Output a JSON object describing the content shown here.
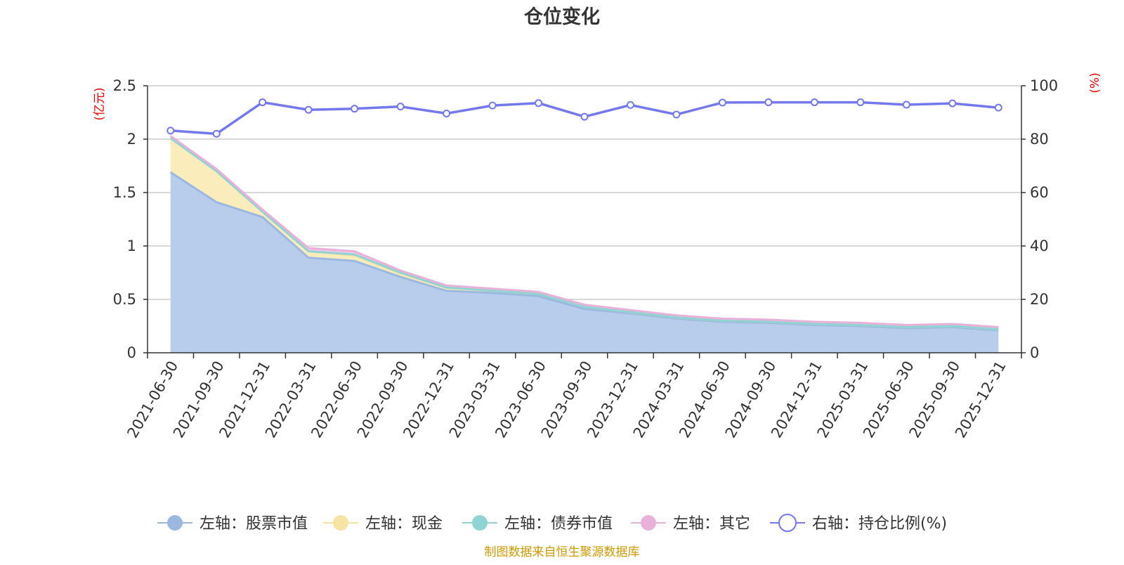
{
  "chart_data": {
    "type": "area",
    "title": "仓位变化",
    "left_axis": {
      "unit_label": "(亿元)",
      "ylim": [
        0,
        2.5
      ],
      "ticks": [
        "0",
        "0.5",
        "1",
        "1.5",
        "2",
        "2.5"
      ]
    },
    "right_axis": {
      "unit_label": "(%)",
      "ylim": [
        0,
        100
      ],
      "ticks": [
        "0",
        "20",
        "40",
        "60",
        "80",
        "100"
      ]
    },
    "categories": [
      "2021-06-30",
      "2021-09-30",
      "2021-12-31",
      "2022-03-31",
      "2022-06-30",
      "2022-09-30",
      "2022-12-31",
      "2023-03-31",
      "2023-06-30",
      "2023-09-30",
      "2023-12-31",
      "2024-03-31",
      "2024-06-30",
      "2024-09-30",
      "2024-12-31",
      "2025-03-31",
      "2025-06-30",
      "2025-09-30",
      "2025-12-31"
    ],
    "series": [
      {
        "name": "左轴：股票市值",
        "axis": "left",
        "stack": true,
        "color": "#9bb8e0",
        "fill": "#b8cdeb",
        "values": [
          1.69,
          1.41,
          1.27,
          0.89,
          0.86,
          0.71,
          0.58,
          0.56,
          0.53,
          0.41,
          0.37,
          0.32,
          0.29,
          0.28,
          0.26,
          0.25,
          0.23,
          0.24,
          0.21
        ]
      },
      {
        "name": "左轴：现金",
        "axis": "left",
        "stack": true,
        "color": "#f7e3a3",
        "fill": "#faecbb",
        "values": [
          0.32,
          0.29,
          0.05,
          0.06,
          0.05,
          0.03,
          0.03,
          0.02,
          0.02,
          0.02,
          0.01,
          0.01,
          0.01,
          0.01,
          0.01,
          0.01,
          0.01,
          0.01,
          0.01
        ]
      },
      {
        "name": "左轴：债券市值",
        "axis": "left",
        "stack": true,
        "color": "#8fd3d3",
        "fill": "#b4e3e3",
        "values": [
          0,
          0,
          0,
          0,
          0.01,
          0.01,
          0,
          0,
          0,
          0,
          0,
          0,
          0,
          0,
          0,
          0,
          0,
          0,
          0
        ]
      },
      {
        "name": "左轴：其它",
        "axis": "left",
        "stack": true,
        "color": "#e7b1da",
        "fill": "#f0c8e6",
        "values": [
          0.02,
          0.02,
          0.02,
          0.03,
          0.03,
          0.02,
          0.02,
          0.02,
          0.02,
          0.02,
          0.02,
          0.02,
          0.02,
          0.02,
          0.02,
          0.02,
          0.02,
          0.02,
          0.02
        ]
      },
      {
        "name": "右轴：持仓比例(%)",
        "axis": "right",
        "stack": false,
        "color": "#7378eb",
        "values": [
          83.2,
          82.0,
          93.8,
          91.0,
          91.4,
          92.2,
          89.6,
          92.6,
          93.5,
          88.4,
          92.8,
          89.2,
          93.7,
          93.8,
          93.8,
          93.8,
          92.9,
          93.4,
          91.8
        ]
      }
    ],
    "source_note": "制图数据来自恒生聚源数据库"
  }
}
